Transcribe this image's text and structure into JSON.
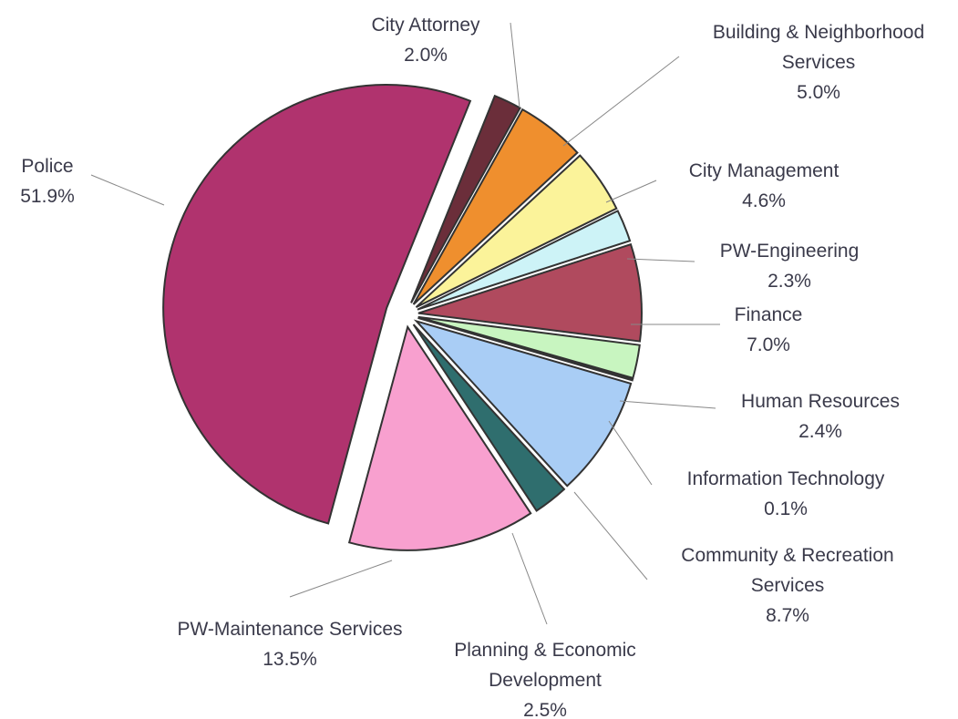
{
  "chart_data": {
    "type": "pie",
    "categories": [
      "City Attorney",
      "Building & Neighborhood Services",
      "City Management",
      "PW-Engineering",
      "Finance",
      "Human Resources",
      "Information Technology",
      "Community & Recreation Services",
      "Planning & Economic Development",
      "PW-Maintenance Services",
      "Police"
    ],
    "values": [
      2.0,
      5.0,
      4.6,
      2.3,
      7.0,
      2.4,
      0.1,
      8.7,
      2.5,
      13.5,
      51.9
    ],
    "value_labels": [
      "2.0%",
      "5.0%",
      "4.6%",
      "2.3%",
      "7.0%",
      "2.4%",
      "0.1%",
      "8.7%",
      "2.5%",
      "13.5%",
      "51.9%"
    ],
    "colors": [
      "#6b2e3a",
      "#ef8f2e",
      "#fbf39a",
      "#cdf3f7",
      "#b04a5e",
      "#c8f5c0",
      "#3a8a8a",
      "#a9cdf5",
      "#2f6e6e",
      "#f8a0cf",
      "#b0336e"
    ]
  }
}
